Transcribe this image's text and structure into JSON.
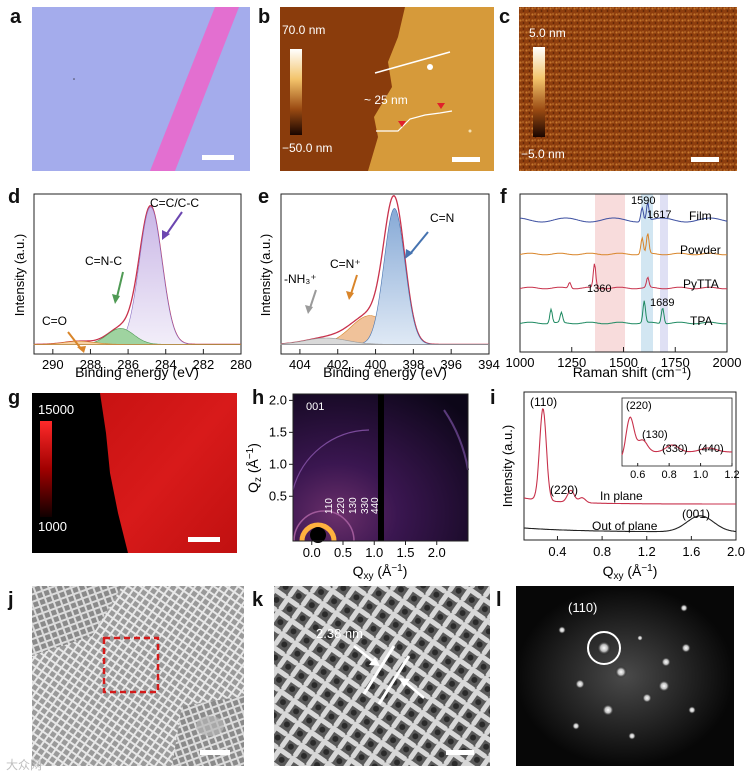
{
  "panels": {
    "a": {
      "label": "a"
    },
    "b": {
      "label": "b",
      "cbar_max": "70.0 nm",
      "cbar_min": "−50.0 nm",
      "step_height": "~ 25 nm"
    },
    "c": {
      "label": "c",
      "cbar_max": "5.0 nm",
      "cbar_min": "−5.0 nm"
    },
    "d": {
      "label": "d"
    },
    "e": {
      "label": "e"
    },
    "f": {
      "label": "f"
    },
    "g": {
      "label": "g",
      "cbar_max": "15000",
      "cbar_min": "1000"
    },
    "h": {
      "label": "h",
      "order_001": "001",
      "ring_labels": [
        "110",
        "220",
        "130",
        "330",
        "440"
      ]
    },
    "i": {
      "label": "i"
    },
    "j": {
      "label": "j"
    },
    "k": {
      "label": "k",
      "d_spacing": "2.38 nm"
    },
    "l": {
      "label": "l",
      "spot_label": "(110)"
    }
  },
  "watermark": "大众网",
  "colors": {
    "pink_strip": "#e36fd0",
    "substrate": "#a4acec",
    "afm_brown": "#9a4a12",
    "pl_red": "#d41515"
  },
  "chart_data": [
    {
      "id": "d",
      "type": "line",
      "title": "",
      "xlabel": "Binding energy (eV)",
      "ylabel": "Intensity (a.u.)",
      "xlim": [
        291,
        280
      ],
      "x_ticks": [
        290,
        288,
        286,
        284,
        282,
        280
      ],
      "peaks": [
        {
          "name": "C=C/C-C",
          "center": 284.8,
          "height": 0.86
        },
        {
          "name": "C=N-C",
          "center": 286.4,
          "height": 0.1
        },
        {
          "name": "C=O",
          "center": 288.6,
          "height": 0.02
        }
      ],
      "annotations": [
        "C=C/C-C",
        "C=N-C",
        "C=O"
      ]
    },
    {
      "id": "e",
      "type": "line",
      "title": "",
      "xlabel": "Binding energy (eV)",
      "ylabel": "Intensity (a.u.)",
      "xlim": [
        405,
        394
      ],
      "x_ticks": [
        404,
        402,
        400,
        398,
        396,
        394
      ],
      "peaks": [
        {
          "name": "C=N",
          "center": 399.0,
          "height": 0.85
        },
        {
          "name": "C=N⁺",
          "center": 400.3,
          "height": 0.18
        },
        {
          "name": "-NH₃⁺",
          "center": 402.6,
          "height": 0.04
        }
      ],
      "annotations": [
        "C=N",
        "C=N⁺",
        "-NH₃⁺"
      ]
    },
    {
      "id": "f",
      "type": "line",
      "title": "",
      "xlabel": "Raman shift (cm⁻¹)",
      "ylabel": "",
      "xlim": [
        1000,
        2000
      ],
      "x_ticks": [
        1000,
        1250,
        1500,
        1750,
        2000
      ],
      "series": [
        {
          "name": "Film",
          "color": "#3b4ea0",
          "peaks": [
            1590,
            1617
          ]
        },
        {
          "name": "Powder",
          "color": "#d9852a",
          "peaks": [
            1590,
            1617
          ]
        },
        {
          "name": "PyTTA",
          "color": "#c8324c",
          "peaks": [
            1240,
            1360,
            1617
          ]
        },
        {
          "name": "TPA",
          "color": "#1f8a62",
          "peaks": [
            1150,
            1200,
            1600,
            1689
          ]
        }
      ],
      "annotations": [
        "1590",
        "1617",
        "1360",
        "1689"
      ],
      "highlight_bands": [
        1360,
        1610,
        1690
      ]
    },
    {
      "id": "h",
      "type": "heatmap",
      "title": "",
      "xlabel": "Qxy (Å⁻¹)",
      "ylabel": "Qz (Å⁻¹)",
      "xlim": [
        -0.3,
        2.5
      ],
      "ylim": [
        -0.2,
        2.1
      ],
      "x_ticks": [
        "0.0",
        "0.5",
        "1.0",
        "1.5",
        "2.0"
      ],
      "y_ticks": [
        "0.5",
        "1.0",
        "1.5",
        "2.0"
      ]
    },
    {
      "id": "i",
      "type": "line",
      "title": "",
      "xlabel": "Qxy (Å⁻¹)",
      "ylabel": "Intensity (a.u.)",
      "xlim": [
        0.1,
        2.0
      ],
      "x_ticks": [
        "0.4",
        "0.8",
        "1.2",
        "1.6",
        "2.0"
      ],
      "series": [
        {
          "name": "In plane",
          "color": "#c8324c",
          "peaks": [
            0.27,
            0.52,
            0.62,
            0.8,
            1.05
          ]
        },
        {
          "name": "Out of plane",
          "color": "#222222",
          "peaks": [
            1.68
          ]
        }
      ],
      "annotations": [
        "(110)",
        "(220)",
        "(001)",
        "In plane",
        "Out of plane"
      ],
      "inset": {
        "xlim": [
          0.5,
          1.2
        ],
        "x_ticks": [
          "0.6",
          "0.8",
          "1.0",
          "1.2"
        ],
        "annotations": [
          "(220)",
          "(130)",
          "(330)",
          "(440)"
        ]
      }
    }
  ]
}
